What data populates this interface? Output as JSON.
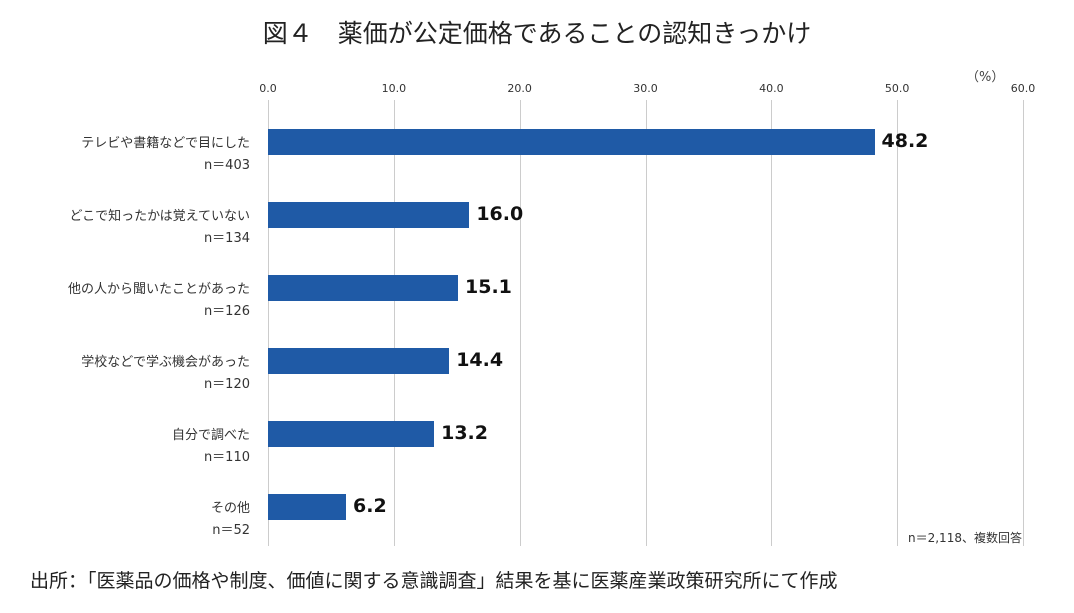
{
  "chart_data": {
    "type": "bar",
    "orientation": "horizontal",
    "title": "図４　薬価が公定価格であることの認知きっかけ",
    "unit_label": "（%）",
    "xlim": [
      0,
      60
    ],
    "ticks": [
      "0.0",
      "10.0",
      "20.0",
      "30.0",
      "40.0",
      "50.0",
      "60.0"
    ],
    "grid": true,
    "bar_color": "#1f5aa6",
    "categories": [
      {
        "label": "テレビや書籍などで目にした",
        "n": "n＝403",
        "value": 48.2,
        "value_label": "48.2"
      },
      {
        "label": "どこで知ったかは覚えていない",
        "n": "n＝134",
        "value": 16.0,
        "value_label": "16.0"
      },
      {
        "label": "他の人から聞いたことがあった",
        "n": "n＝126",
        "value": 15.1,
        "value_label": "15.1"
      },
      {
        "label": "学校などで学ぶ機会があった",
        "n": "n＝120",
        "value": 14.4,
        "value_label": "14.4"
      },
      {
        "label": "自分で調べた",
        "n": "n＝110",
        "value": 13.2,
        "value_label": "13.2"
      },
      {
        "label": "その他",
        "n": "n＝52",
        "value": 6.2,
        "value_label": "6.2"
      }
    ],
    "note": "n＝2,118、複数回答",
    "source": "出所：「医薬品の価格や制度、価値に関する意識調査」結果を基に医薬産業政策研究所にて作成"
  }
}
